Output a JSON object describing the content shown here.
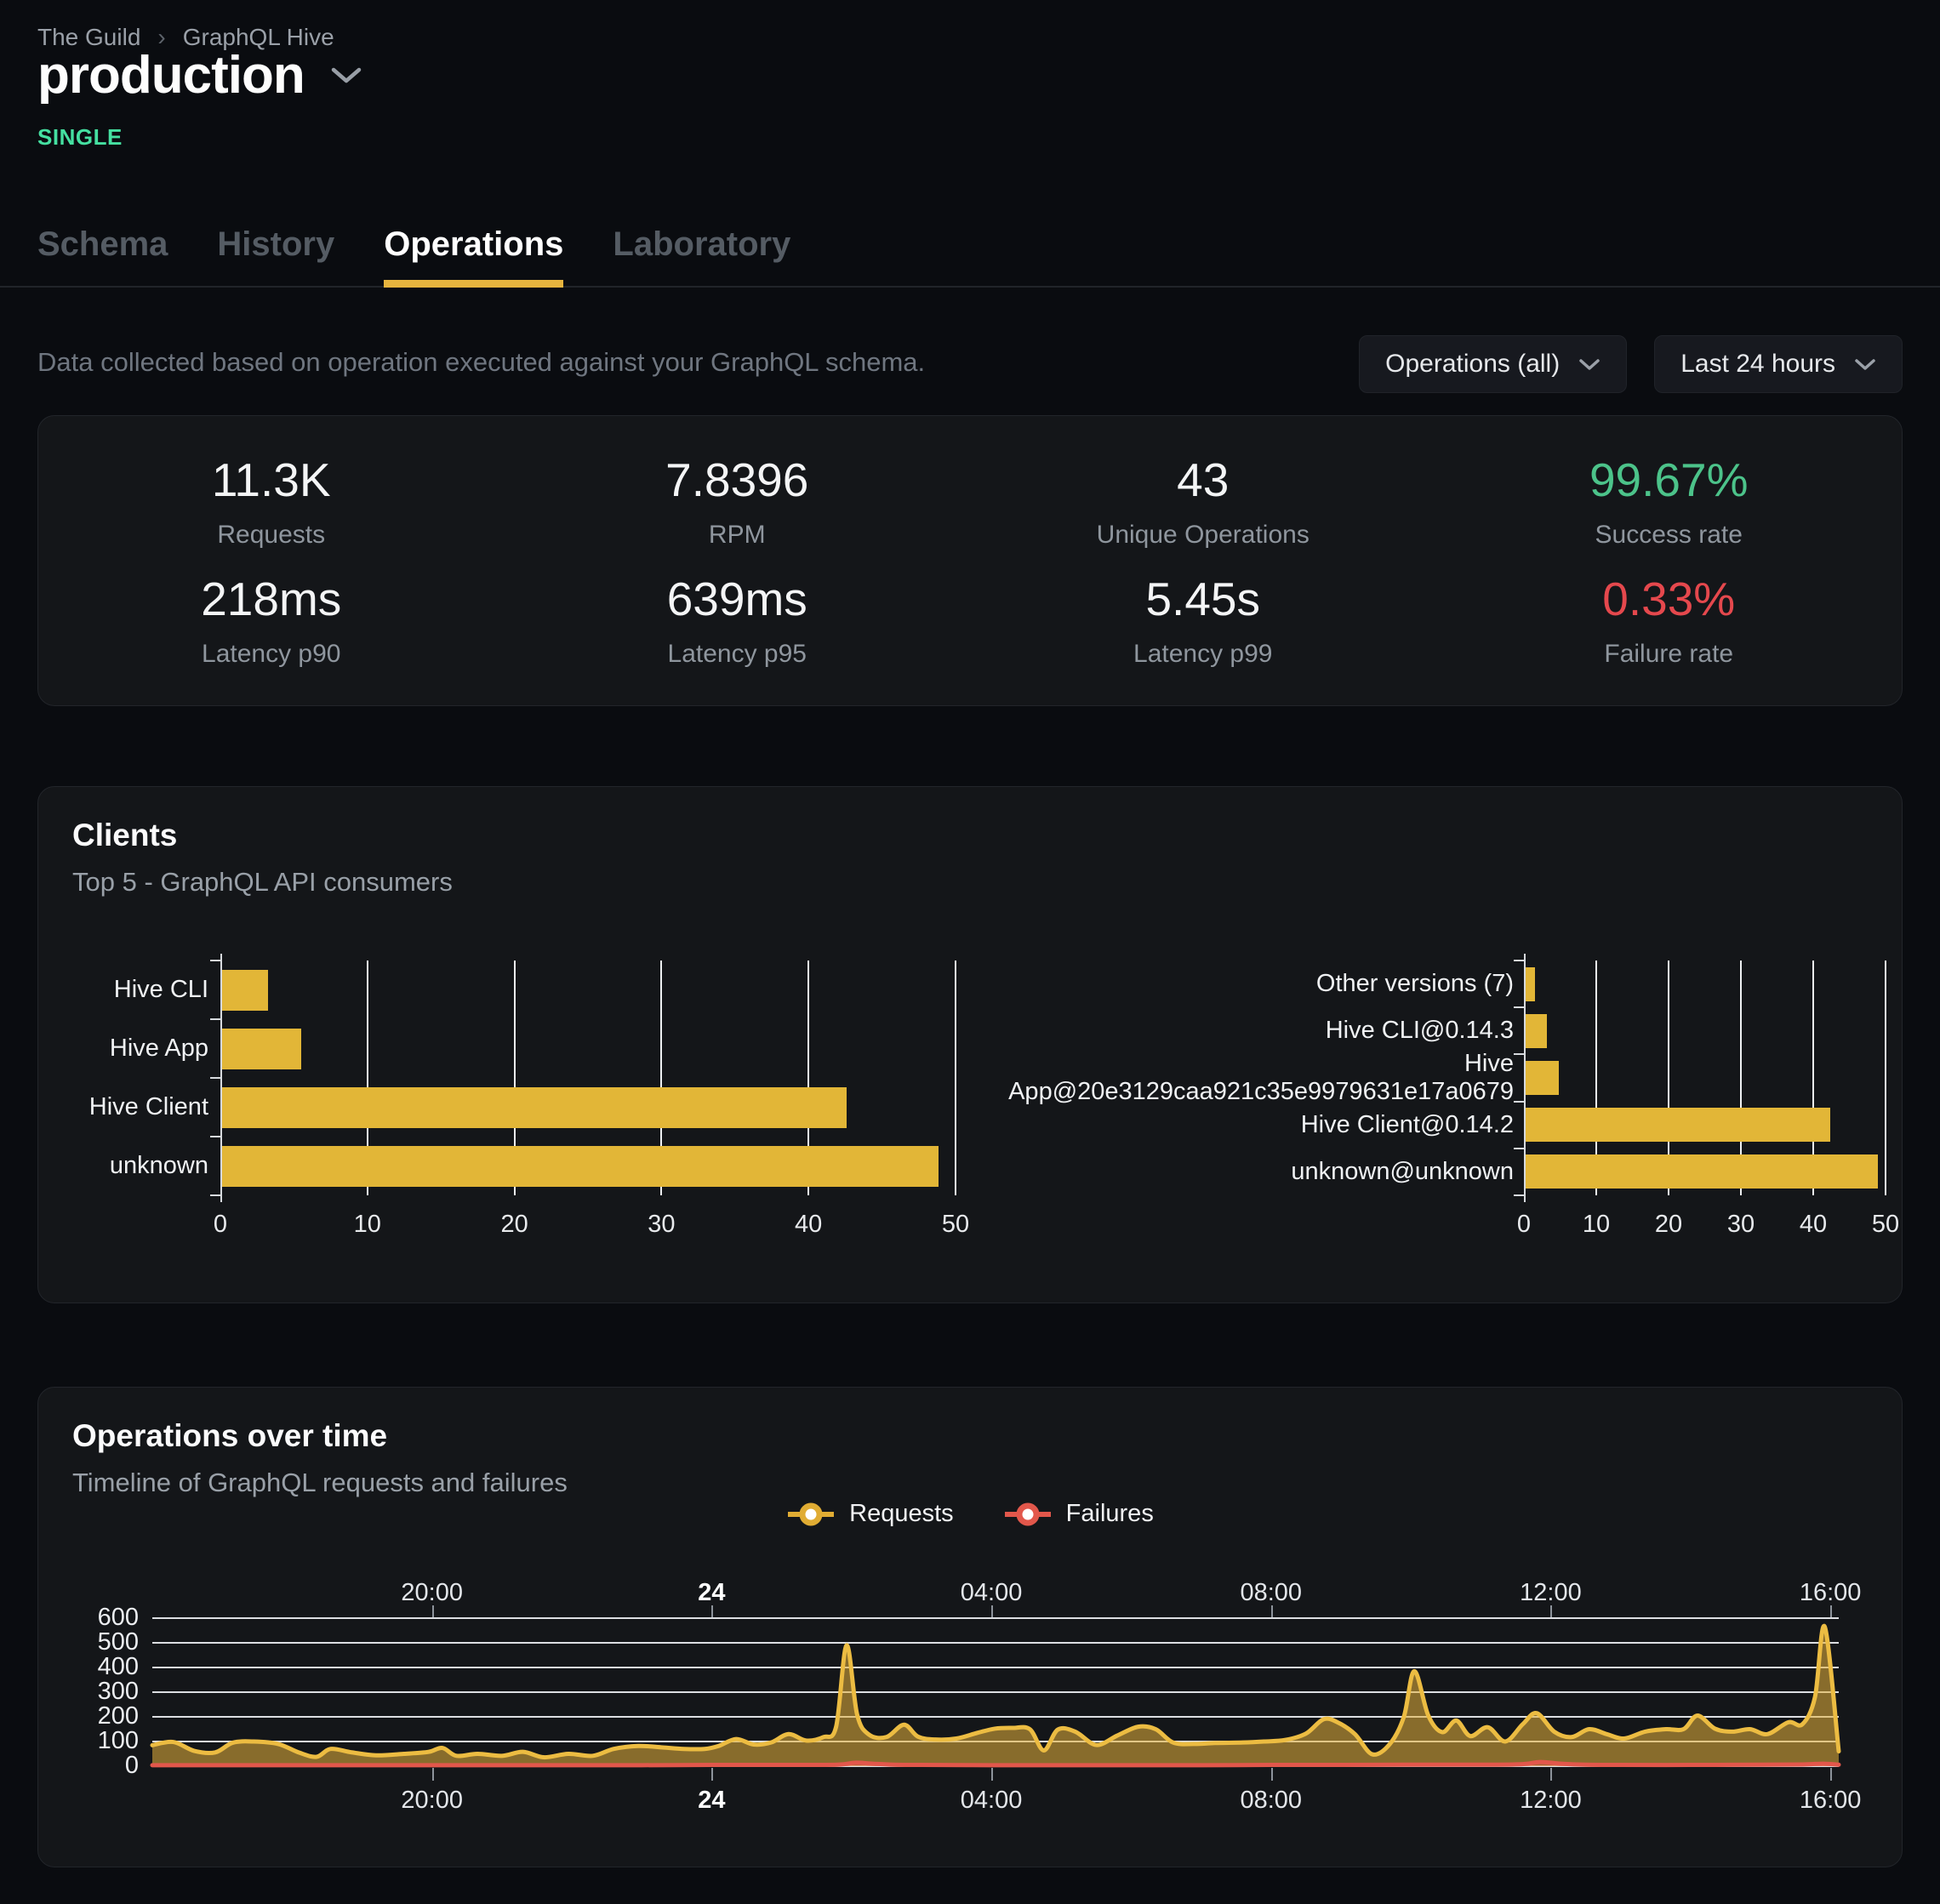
{
  "breadcrumb": {
    "items": [
      "The Guild",
      "GraphQL Hive"
    ],
    "separator": "›"
  },
  "header": {
    "title": "production",
    "badge": "SINGLE"
  },
  "tabs": [
    {
      "label": "Schema",
      "active": false
    },
    {
      "label": "History",
      "active": false
    },
    {
      "label": "Operations",
      "active": true
    },
    {
      "label": "Laboratory",
      "active": false
    }
  ],
  "toolbar": {
    "description": "Data collected based on operation executed against your GraphQL schema.",
    "filters": [
      "Operations (all)",
      "Last 24 hours"
    ]
  },
  "stats": {
    "rows": [
      [
        {
          "value": "11.3K",
          "label": "Requests"
        },
        {
          "value": "7.8396",
          "label": "RPM"
        },
        {
          "value": "43",
          "label": "Unique Operations"
        },
        {
          "value": "99.67%",
          "label": "Success rate",
          "color": "#4cc38a"
        }
      ],
      [
        {
          "value": "218ms",
          "label": "Latency p90"
        },
        {
          "value": "639ms",
          "label": "Latency p95"
        },
        {
          "value": "5.45s",
          "label": "Latency p99"
        },
        {
          "value": "0.33%",
          "label": "Failure rate",
          "color": "#e5484d"
        }
      ]
    ]
  },
  "clients": {
    "title": "Clients",
    "subtitle": "Top 5 - GraphQL API consumers",
    "bar_color": "#e2b637",
    "charts": [
      {
        "type": "bar",
        "name": "clients-by-name",
        "categories": [
          "Hive CLI",
          "Hive App",
          "Hive Client",
          "unknown"
        ],
        "values": [
          3.1,
          5.4,
          42.5,
          48.7
        ],
        "xmax": 50,
        "xticks": [
          0,
          10,
          20,
          30,
          40,
          50
        ]
      },
      {
        "type": "bar",
        "name": "clients-by-version",
        "categories": [
          "Other versions (7)",
          "Hive CLI@0.14.3",
          "Hive App@20e3129caa921c35e9979631e17a0679",
          "Hive Client@0.14.2",
          "unknown@unknown"
        ],
        "values": [
          1.3,
          2.9,
          4.6,
          42.1,
          48.7
        ],
        "xmax": 50,
        "xticks": [
          0,
          10,
          20,
          30,
          40,
          50
        ]
      }
    ]
  },
  "operations": {
    "title": "Operations over time",
    "subtitle": "Timeline of GraphQL requests and failures",
    "legend": [
      {
        "label": "Requests",
        "color": "#e0ac33"
      },
      {
        "label": "Failures",
        "color": "#e2574b"
      }
    ],
    "chart": {
      "type": "area",
      "ymax": 600,
      "yticks": [
        600,
        500,
        400,
        300,
        200,
        100,
        0
      ],
      "t_max": 24.12,
      "xticks": [
        {
          "t": 4,
          "label": "20:00",
          "bold": false
        },
        {
          "t": 8,
          "label": "24",
          "bold": true
        },
        {
          "t": 12,
          "label": "04:00",
          "bold": false
        },
        {
          "t": 16,
          "label": "08:00",
          "bold": false
        },
        {
          "t": 20,
          "label": "12:00",
          "bold": false
        },
        {
          "t": 24,
          "label": "16:00",
          "bold": false
        }
      ],
      "requests_color": "#ecbc42",
      "requests_fill": "rgba(231,181,60,0.55)",
      "failures_color": "#e2574b",
      "failures_fill": "rgba(226,87,75,0.35)",
      "requests": [
        [
          0,
          85
        ],
        [
          0.3,
          98
        ],
        [
          0.6,
          62
        ],
        [
          0.9,
          56
        ],
        [
          1.15,
          95
        ],
        [
          1.45,
          100
        ],
        [
          1.8,
          90
        ],
        [
          2.1,
          55
        ],
        [
          2.35,
          38
        ],
        [
          2.55,
          70
        ],
        [
          2.85,
          56
        ],
        [
          3.2,
          44
        ],
        [
          3.6,
          50
        ],
        [
          3.95,
          58
        ],
        [
          4.15,
          74
        ],
        [
          4.35,
          42
        ],
        [
          4.65,
          50
        ],
        [
          5,
          42
        ],
        [
          5.3,
          58
        ],
        [
          5.6,
          36
        ],
        [
          5.95,
          50
        ],
        [
          6.3,
          42
        ],
        [
          6.6,
          70
        ],
        [
          6.95,
          82
        ],
        [
          7.3,
          76
        ],
        [
          7.6,
          70
        ],
        [
          7.9,
          70
        ],
        [
          8.1,
          82
        ],
        [
          8.35,
          110
        ],
        [
          8.6,
          88
        ],
        [
          8.85,
          96
        ],
        [
          9.1,
          130
        ],
        [
          9.35,
          104
        ],
        [
          9.6,
          118
        ],
        [
          9.78,
          160
        ],
        [
          9.93,
          490
        ],
        [
          10.08,
          210
        ],
        [
          10.25,
          128
        ],
        [
          10.5,
          118
        ],
        [
          10.75,
          168
        ],
        [
          10.95,
          120
        ],
        [
          11.2,
          108
        ],
        [
          11.5,
          112
        ],
        [
          11.8,
          135
        ],
        [
          12.05,
          152
        ],
        [
          12.3,
          155
        ],
        [
          12.55,
          150
        ],
        [
          12.75,
          64
        ],
        [
          12.95,
          148
        ],
        [
          13.2,
          140
        ],
        [
          13.5,
          86
        ],
        [
          13.8,
          124
        ],
        [
          14.1,
          160
        ],
        [
          14.35,
          150
        ],
        [
          14.6,
          96
        ],
        [
          14.9,
          90
        ],
        [
          15.2,
          94
        ],
        [
          15.6,
          96
        ],
        [
          15.9,
          100
        ],
        [
          16.2,
          106
        ],
        [
          16.5,
          132
        ],
        [
          16.75,
          190
        ],
        [
          16.95,
          178
        ],
        [
          17.2,
          130
        ],
        [
          17.45,
          48
        ],
        [
          17.7,
          90
        ],
        [
          17.9,
          200
        ],
        [
          18.05,
          385
        ],
        [
          18.25,
          205
        ],
        [
          18.45,
          138
        ],
        [
          18.65,
          185
        ],
        [
          18.85,
          122
        ],
        [
          19.1,
          158
        ],
        [
          19.35,
          100
        ],
        [
          19.6,
          170
        ],
        [
          19.8,
          215
        ],
        [
          20.05,
          140
        ],
        [
          20.3,
          118
        ],
        [
          20.55,
          150
        ],
        [
          20.8,
          130
        ],
        [
          21.05,
          112
        ],
        [
          21.35,
          140
        ],
        [
          21.65,
          150
        ],
        [
          21.9,
          150
        ],
        [
          22.1,
          205
        ],
        [
          22.35,
          152
        ],
        [
          22.6,
          140
        ],
        [
          22.85,
          150
        ],
        [
          23.1,
          130
        ],
        [
          23.4,
          178
        ],
        [
          23.6,
          170
        ],
        [
          23.78,
          280
        ],
        [
          23.92,
          565
        ],
        [
          24.12,
          60
        ]
      ],
      "failures": [
        [
          0,
          4
        ],
        [
          1,
          4
        ],
        [
          2,
          4
        ],
        [
          3,
          4
        ],
        [
          4,
          4
        ],
        [
          5,
          4
        ],
        [
          6,
          4
        ],
        [
          7,
          4
        ],
        [
          8,
          5
        ],
        [
          9,
          5
        ],
        [
          9.8,
          6
        ],
        [
          10.05,
          14
        ],
        [
          10.3,
          10
        ],
        [
          10.6,
          6
        ],
        [
          11,
          5
        ],
        [
          12,
          4
        ],
        [
          13,
          4
        ],
        [
          14,
          4
        ],
        [
          15,
          4
        ],
        [
          16,
          5
        ],
        [
          17,
          5
        ],
        [
          18,
          6
        ],
        [
          19,
          6
        ],
        [
          19.6,
          8
        ],
        [
          19.85,
          17
        ],
        [
          20.15,
          10
        ],
        [
          20.5,
          6
        ],
        [
          21,
          5
        ],
        [
          22,
          5
        ],
        [
          23,
          6
        ],
        [
          23.6,
          7
        ],
        [
          23.9,
          10
        ],
        [
          24.12,
          6
        ]
      ]
    }
  }
}
